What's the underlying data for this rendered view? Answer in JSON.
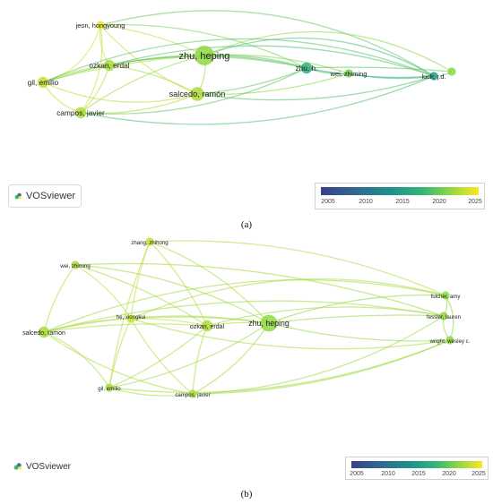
{
  "figure": {
    "panels": [
      {
        "caption": "(a)",
        "logo_text": "VOSviewer",
        "color_scale": {
          "ticks": [
            "2005",
            "2010",
            "2015",
            "2020",
            "2025"
          ],
          "colors": [
            "#3b3f8c",
            "#31688e",
            "#21918c",
            "#35b779",
            "#90d743",
            "#fde725"
          ]
        },
        "nodes": [
          {
            "id": "jeon",
            "label": "jeon, hongyoung",
            "weight": 1,
            "year": 2024
          },
          {
            "id": "zhu_heping",
            "label": "zhu, heping",
            "weight": 5,
            "year": 2021
          },
          {
            "id": "ozkan",
            "label": "ozkan, erdal",
            "weight": 2,
            "year": 2022
          },
          {
            "id": "gil",
            "label": "gil, emilio",
            "weight": 2,
            "year": 2023
          },
          {
            "id": "salcedo",
            "label": "salcedo, ramón",
            "weight": 3,
            "year": 2022
          },
          {
            "id": "campos",
            "label": "campos, javier",
            "weight": 2,
            "year": 2022
          },
          {
            "id": "zhu_h",
            "label": "zhu, h.",
            "weight": 2,
            "year": 2016
          },
          {
            "id": "wei",
            "label": "wei, zhiming",
            "weight": 1,
            "year": 2020
          },
          {
            "id": "luck",
            "label": "luck, j.d.",
            "weight": 1,
            "year": 2014
          },
          {
            "id": "unlabeled",
            "label": "",
            "weight": 1,
            "year": 2021
          }
        ]
      },
      {
        "caption": "(b)",
        "logo_text": "VOSviewer",
        "color_scale": {
          "ticks": [
            "2005",
            "2010",
            "2015",
            "2020",
            "2025"
          ],
          "colors": [
            "#3b3f8c",
            "#31688e",
            "#21918c",
            "#35b779",
            "#90d743",
            "#fde725"
          ]
        },
        "nodes": [
          {
            "id": "zhang",
            "label": "zhang, zhihong",
            "weight": 1,
            "year": 2023
          },
          {
            "id": "wei",
            "label": "wei, zhiming",
            "weight": 1,
            "year": 2022
          },
          {
            "id": "fulcher",
            "label": "fulcher, amy",
            "weight": 1,
            "year": 2021
          },
          {
            "id": "he",
            "label": "he, xiongkui",
            "weight": 1,
            "year": 2023
          },
          {
            "id": "ozkan",
            "label": "ozkan, erdal",
            "weight": 2,
            "year": 2022
          },
          {
            "id": "zhu_heping",
            "label": "zhu, heping",
            "weight": 4,
            "year": 2021
          },
          {
            "id": "fessler",
            "label": "fessler, lauren",
            "weight": 1,
            "year": 2021
          },
          {
            "id": "salcedo",
            "label": "salcedo, ramon",
            "weight": 2,
            "year": 2022
          },
          {
            "id": "wright",
            "label": "wright, wesley c.",
            "weight": 1,
            "year": 2021
          },
          {
            "id": "gil",
            "label": "gil, emilio",
            "weight": 1,
            "year": 2022
          },
          {
            "id": "campos",
            "label": "campos, javier",
            "weight": 1,
            "year": 2022
          }
        ]
      }
    ]
  }
}
